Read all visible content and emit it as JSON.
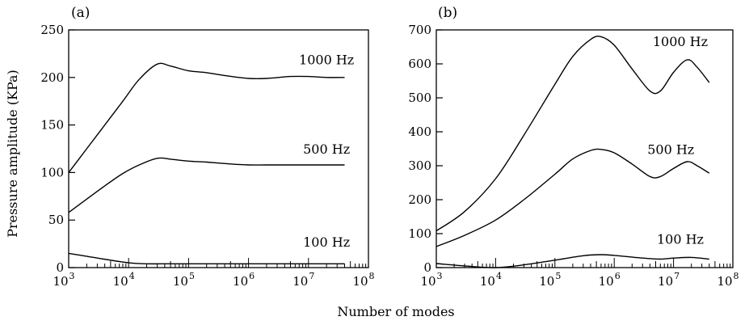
{
  "chart_data": [
    {
      "type": "line",
      "panel_label": "(a)",
      "x_scale": "log",
      "xlim": [
        1000,
        100000000
      ],
      "x_tick_labels": [
        "10^3",
        "10^4",
        "10^5",
        "10^6",
        "10^7",
        "10^8"
      ],
      "ylim": [
        0,
        250
      ],
      "y_ticks": [
        0,
        50,
        100,
        150,
        200,
        250
      ],
      "ylabel": "Pressure amplitude (KPa)",
      "series": [
        {
          "name": "1000 Hz",
          "x": [
            1000,
            2000,
            4000,
            8000,
            15000,
            30000,
            50000,
            100000,
            200000,
            400000,
            1000000,
            2000000,
            5000000,
            10000000,
            20000000,
            40000000
          ],
          "y": [
            100,
            125,
            150,
            175,
            198,
            214,
            212,
            207,
            205,
            202,
            199,
            199,
            201,
            201,
            200,
            200
          ]
        },
        {
          "name": "500 Hz",
          "x": [
            1000,
            2000,
            4000,
            8000,
            15000,
            30000,
            50000,
            100000,
            200000,
            500000,
            1000000,
            2000000,
            5000000,
            10000000,
            20000000,
            40000000
          ],
          "y": [
            58,
            72,
            86,
            99,
            108,
            115,
            114,
            112,
            111,
            109,
            108,
            108,
            108,
            108,
            108,
            108
          ]
        },
        {
          "name": "100 Hz",
          "x": [
            1000,
            3000,
            10000,
            20000,
            50000,
            100000,
            1000000,
            10000000,
            40000000
          ],
          "y": [
            15,
            10,
            5,
            4,
            4,
            4,
            4,
            4,
            4
          ]
        }
      ]
    },
    {
      "type": "line",
      "panel_label": "(b)",
      "x_scale": "log",
      "xlim": [
        1000,
        100000000
      ],
      "x_tick_labels": [
        "10^3",
        "10^4",
        "10^5",
        "10^6",
        "10^7",
        "10^8"
      ],
      "ylim": [
        0,
        700
      ],
      "y_ticks": [
        0,
        100,
        200,
        300,
        400,
        500,
        600,
        700
      ],
      "xlabel": "Number of modes",
      "series": [
        {
          "name": "1000 Hz",
          "x": [
            1000,
            3000,
            10000,
            30000,
            100000,
            200000,
            400000,
            600000,
            1000000,
            2000000,
            4000000,
            6000000,
            10000000,
            17000000,
            25000000,
            40000000
          ],
          "y": [
            108,
            165,
            262,
            390,
            540,
            622,
            672,
            680,
            655,
            585,
            520,
            520,
            575,
            612,
            590,
            545
          ]
        },
        {
          "name": "500 Hz",
          "x": [
            1000,
            3000,
            10000,
            30000,
            100000,
            200000,
            400000,
            600000,
            1000000,
            2000000,
            4000000,
            6000000,
            10000000,
            17000000,
            25000000,
            40000000
          ],
          "y": [
            62,
            95,
            140,
            200,
            275,
            320,
            345,
            348,
            338,
            305,
            268,
            268,
            292,
            312,
            300,
            278
          ]
        },
        {
          "name": "100 Hz",
          "x": [
            1000,
            3000,
            10000,
            30000,
            100000,
            300000,
            600000,
            1000000,
            3000000,
            6000000,
            10000000,
            20000000,
            40000000
          ],
          "y": [
            12,
            5,
            0,
            8,
            22,
            35,
            38,
            36,
            28,
            25,
            28,
            30,
            25
          ]
        }
      ]
    }
  ],
  "labels": {
    "panel_a": "(a)",
    "panel_b": "(b)",
    "ylabel": "Pressure amplitude (KPa)",
    "xlabel": "Number of modes"
  }
}
